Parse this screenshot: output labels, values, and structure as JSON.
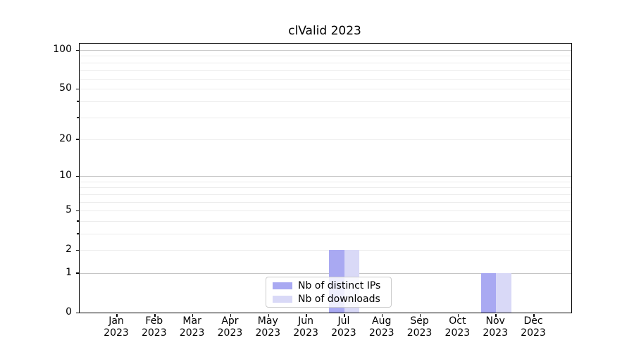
{
  "title": "clValid 2023",
  "chart_data": {
    "type": "bar",
    "title": "clValid 2023",
    "categories": [
      "Jan 2023",
      "Feb 2023",
      "Mar 2023",
      "Apr 2023",
      "May 2023",
      "Jun 2023",
      "Jul 2023",
      "Aug 2023",
      "Sep 2023",
      "Oct 2023",
      "Nov 2023",
      "Dec 2023"
    ],
    "series": [
      {
        "name": "Nb of distinct IPs",
        "color": "#a9a9f2",
        "values": [
          0,
          0,
          0,
          0,
          0,
          0,
          2,
          0,
          0,
          0,
          1,
          0
        ]
      },
      {
        "name": "Nb of downloads",
        "color": "#d9d9f7",
        "values": [
          0,
          0,
          0,
          0,
          0,
          0,
          2,
          0,
          0,
          0,
          1,
          0
        ]
      }
    ],
    "xlabel": "",
    "ylabel": "",
    "yscale": "log1p",
    "ylim": [
      0,
      112
    ],
    "ytick_labels": [
      0,
      1,
      2,
      5,
      10,
      20,
      50,
      100
    ],
    "major_grid_values": [
      1,
      10,
      100
    ],
    "minor_grid_values": [
      3,
      4,
      6,
      7,
      8,
      9,
      30,
      40,
      60,
      70,
      80,
      90
    ],
    "grid": true,
    "legend_position": "inside-bottom-center",
    "colors": {
      "major_grid": "#c5c5c5",
      "minor_grid": "#ececec",
      "spine": "#000000",
      "bar_distinct_ips": "#a9a9f2",
      "bar_downloads": "#d9d9f7"
    }
  }
}
